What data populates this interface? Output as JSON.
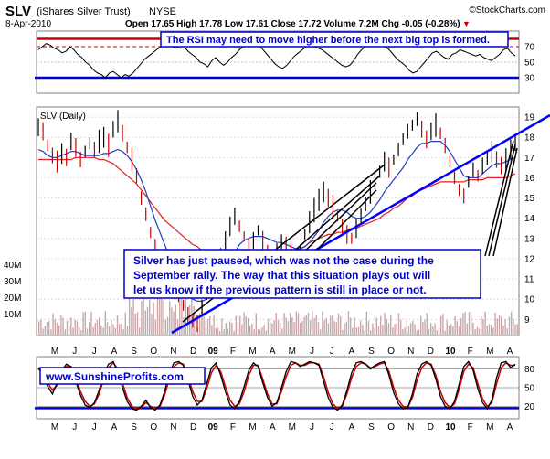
{
  "header": {
    "symbol": "SLV",
    "name": "(iShares Silver Trust)",
    "exchange": "NYSE",
    "date": "8-Apr-2010",
    "quote": "Open 17.65  High 17.78  Low 17.61  Close 17.72  Volume 7.2M  Chg -0.05 (-0.28%)",
    "chg_marker": "▼",
    "brand": "©StockCharts.com"
  },
  "annotations": {
    "rsi_note": "The RSI may need to move higher before the next big top is formed.",
    "main_note_lines": [
      "Silver has just paused, which was not the case during the",
      "September rally. The way that this situation plays out will",
      "let us know if the previous pattern is still in place or not."
    ],
    "website": "www.SunshineProfits.com"
  },
  "colors": {
    "price": "#000000",
    "down_bar": "#cc0000",
    "ma_short": "#1f3fbf",
    "ma_long": "#dd2222",
    "trend_blue": "#0000ff",
    "volume": "#c8a8a8",
    "rsi_band_red": "#cc0000",
    "rsi_band_blue": "#0000cc",
    "stoch_k": "#000000",
    "stoch_d": "#cc0000"
  },
  "chart_data": [
    {
      "type": "line",
      "title": "SLV (Daily)",
      "name": "rsi",
      "yticks": [
        70,
        50,
        30
      ],
      "ylim": [
        10,
        90
      ],
      "series": [
        {
          "name": "",
          "values": [
            66,
            70,
            74,
            72,
            68,
            66,
            62,
            64,
            70,
            66,
            60,
            56,
            50,
            46,
            40,
            36,
            34,
            30,
            36,
            38,
            34,
            30,
            34,
            32,
            36,
            42,
            48,
            54,
            58,
            62,
            66,
            70,
            74,
            72,
            70,
            68,
            72,
            70,
            64,
            60,
            56,
            50,
            48,
            44,
            52,
            56,
            50,
            46,
            50,
            56,
            60,
            66,
            70,
            74,
            78,
            76,
            72,
            66,
            60,
            54,
            48,
            44,
            42,
            46,
            52,
            58,
            62,
            66,
            70,
            72,
            70,
            68,
            66,
            62,
            58,
            54,
            50,
            46,
            44,
            46,
            52,
            60,
            66,
            70,
            74,
            76,
            74,
            72,
            70,
            66,
            60,
            54,
            50,
            46,
            40,
            36,
            38,
            44,
            50,
            56,
            62,
            64,
            60,
            56,
            54,
            60,
            62,
            66,
            64,
            62,
            60,
            58,
            60,
            56,
            54,
            52,
            56,
            60,
            66,
            68,
            62,
            58
          ]
        }
      ]
    },
    {
      "type": "line",
      "name": "price",
      "yticks": [
        19,
        18,
        17,
        16,
        15,
        14,
        13,
        12,
        11,
        10,
        9
      ],
      "volume_ticks": [
        "40M",
        "30M",
        "20M",
        "10M"
      ],
      "x_labels": [
        "M",
        "J",
        "J",
        "A",
        "S",
        "O",
        "N",
        "D",
        "09",
        "F",
        "M",
        "A",
        "M",
        "J",
        "J",
        "A",
        "S",
        "O",
        "N",
        "D",
        "10",
        "F",
        "M",
        "A"
      ],
      "ylim": [
        8.2,
        19.5
      ],
      "series": [
        {
          "name": "SLV",
          "values": [
            18.5,
            18.3,
            17.6,
            17.1,
            16.8,
            17.2,
            17.0,
            17.8,
            17.5,
            16.9,
            17.3,
            17.7,
            17.4,
            17.8,
            18.0,
            17.6,
            18.4,
            18.8,
            18.2,
            17.5,
            16.9,
            16.1,
            15.0,
            14.2,
            13.3,
            12.6,
            12.0,
            11.6,
            11.2,
            10.8,
            10.3,
            9.7,
            9.2,
            8.9,
            8.8,
            9.6,
            10.3,
            10.9,
            11.6,
            12.2,
            12.9,
            13.6,
            14.1,
            13.6,
            13.1,
            12.6,
            12.9,
            13.4,
            12.9,
            12.4,
            12.1,
            12.4,
            12.8,
            12.6,
            12.2,
            11.8,
            12.4,
            13.2,
            13.8,
            14.4,
            14.9,
            15.3,
            15.0,
            14.6,
            14.1,
            13.6,
            13.2,
            13.0,
            13.5,
            14.1,
            14.7,
            15.3,
            15.9,
            16.3,
            16.8,
            16.5,
            16.9,
            17.4,
            17.9,
            18.3,
            18.6,
            18.9,
            18.4,
            17.9,
            18.3,
            18.6,
            18.2,
            17.6,
            16.8,
            16.0,
            15.4,
            15.1,
            15.8,
            16.4,
            16.1,
            16.6,
            17.0,
            17.3,
            16.9,
            16.6,
            16.9,
            17.4,
            17.7
          ]
        },
        {
          "name": "",
          "values": [
            17.4,
            17.3,
            17.1,
            17.0,
            17.0,
            17.1,
            17.2,
            17.3,
            17.3,
            17.2,
            17.1,
            17.1,
            17.1,
            17.1,
            17.2,
            17.2,
            17.3,
            17.4,
            17.3,
            17.1,
            16.8,
            16.4,
            15.9,
            15.3,
            14.6,
            13.9,
            13.3,
            12.7,
            12.1,
            11.6,
            11.1,
            10.7,
            10.3,
            10.0,
            9.9,
            9.9,
            10.0,
            10.2,
            10.5,
            10.9,
            11.3,
            11.8,
            12.3,
            12.7,
            12.9,
            13.0,
            13.1,
            13.1,
            13.1,
            13.0,
            12.9,
            12.8,
            12.8,
            12.7,
            12.6,
            12.5,
            12.5,
            12.6,
            12.8,
            13.1,
            13.4,
            13.8,
            14.1,
            14.3,
            14.4,
            14.4,
            14.3,
            14.1,
            14.0,
            14.0,
            14.1,
            14.3,
            14.6,
            14.9,
            15.3,
            15.6,
            15.9,
            16.2,
            16.5,
            16.9,
            17.2,
            17.5,
            17.7,
            17.7,
            17.8,
            17.8,
            17.8,
            17.6,
            17.3,
            16.9,
            16.5,
            16.1,
            16.0,
            16.0,
            16.0,
            16.2,
            16.4,
            16.6,
            16.7,
            16.7,
            16.8,
            16.9,
            17.0
          ]
        },
        {
          "name": "",
          "values": [
            16.9,
            16.9,
            16.9,
            16.9,
            16.9,
            16.9,
            16.9,
            16.9,
            17.0,
            17.0,
            17.0,
            17.0,
            17.0,
            16.9,
            16.9,
            16.8,
            16.7,
            16.5,
            16.3,
            16.1,
            15.9,
            15.7,
            15.4,
            15.1,
            14.8,
            14.5,
            14.2,
            13.9,
            13.7,
            13.5,
            13.3,
            13.1,
            12.9,
            12.7,
            12.6,
            12.4,
            12.3,
            12.2,
            12.1,
            12.0,
            12.0,
            12.0,
            12.0,
            12.0,
            12.0,
            12.0,
            12.0,
            12.0,
            12.0,
            12.0,
            12.0,
            12.1,
            12.1,
            12.2,
            12.3,
            12.4,
            12.5,
            12.6,
            12.8,
            12.9,
            13.0,
            13.1,
            13.2,
            13.2,
            13.3,
            13.3,
            13.4,
            13.5,
            13.5,
            13.6,
            13.7,
            13.8,
            13.9,
            14.0,
            14.2,
            14.3,
            14.5,
            14.6,
            14.8,
            15.0,
            15.1,
            15.3,
            15.4,
            15.5,
            15.6,
            15.7,
            15.8,
            15.8,
            15.8,
            15.8,
            15.8,
            15.8,
            15.9,
            15.9,
            15.9,
            15.9,
            16.0,
            16.0,
            16.0,
            16.0,
            16.0,
            16.1,
            16.2
          ]
        }
      ]
    },
    {
      "type": "line",
      "name": "stochastic",
      "yticks": [
        80,
        50,
        20
      ],
      "ylim": [
        0,
        100
      ],
      "series": [
        {
          "name": "",
          "values": [
            82,
            70,
            52,
            40,
            58,
            78,
            88,
            84,
            60,
            38,
            22,
            18,
            26,
            46,
            72,
            88,
            92,
            76,
            50,
            28,
            16,
            14,
            20,
            30,
            18,
            14,
            22,
            44,
            74,
            90,
            92,
            86,
            62,
            36,
            22,
            30,
            56,
            82,
            90,
            70,
            44,
            22,
            16,
            28,
            52,
            78,
            90,
            84,
            58,
            34,
            20,
            26,
            50,
            76,
            92,
            90,
            84,
            88,
            92,
            90,
            86,
            60,
            34,
            18,
            14,
            22,
            46,
            74,
            90,
            92,
            88,
            80,
            86,
            90,
            92,
            70,
            42,
            24,
            16,
            18,
            40,
            72,
            88,
            92,
            86,
            64,
            36,
            20,
            16,
            28,
            56,
            84,
            92,
            78,
            48,
            26,
            16,
            30,
            66,
            90,
            92,
            82,
            88
          ]
        },
        {
          "name": "",
          "values": [
            80,
            74,
            58,
            46,
            54,
            72,
            84,
            84,
            66,
            44,
            28,
            20,
            24,
            40,
            64,
            82,
            90,
            80,
            58,
            34,
            20,
            16,
            18,
            26,
            20,
            16,
            20,
            38,
            64,
            84,
            90,
            88,
            68,
            44,
            28,
            28,
            48,
            74,
            86,
            76,
            52,
            30,
            20,
            24,
            44,
            70,
            86,
            86,
            64,
            40,
            24,
            24,
            44,
            68,
            86,
            90,
            86,
            86,
            90,
            90,
            88,
            68,
            42,
            24,
            16,
            20,
            40,
            66,
            84,
            90,
            88,
            82,
            84,
            88,
            90,
            76,
            50,
            30,
            20,
            18,
            34,
            62,
            82,
            90,
            88,
            70,
            44,
            26,
            18,
            24,
            48,
            76,
            88,
            82,
            56,
            32,
            20,
            26,
            56,
            82,
            90,
            86,
            86
          ]
        }
      ]
    }
  ]
}
